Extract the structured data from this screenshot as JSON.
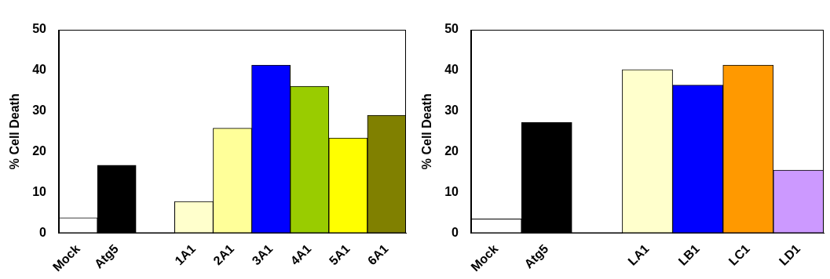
{
  "chart_data": [
    {
      "type": "bar",
      "y_label": "% Cell Death",
      "categories": [
        "Mock",
        "Atg5",
        null,
        "1A1",
        "2A1",
        "3A1",
        "4A1",
        "5A1",
        "6A1"
      ],
      "values": [
        3.8,
        16.7,
        null,
        7.8,
        25.8,
        41.3,
        36.1,
        23.4,
        29.0
      ],
      "colors": [
        "#ffffff",
        "#000000",
        null,
        "#ffffcc",
        "#ffff99",
        "#0000ff",
        "#99cc00",
        "#ffff00",
        "#808000"
      ],
      "ylim": [
        0,
        50
      ],
      "yticks": [
        0,
        10,
        20,
        30,
        40,
        50
      ],
      "grid": false
    },
    {
      "type": "bar",
      "y_label": "% Cell Death",
      "categories": [
        "Mock",
        "Atg5",
        null,
        "LA1",
        "LB1",
        "LC1",
        "LD1"
      ],
      "values": [
        3.5,
        27.2,
        null,
        40.2,
        36.4,
        41.3,
        15.5
      ],
      "colors": [
        "#ffffff",
        "#000000",
        null,
        "#ffffcc",
        "#0000ff",
        "#ff9900",
        "#cc99ff"
      ],
      "ylim": [
        0,
        50
      ],
      "yticks": [
        0,
        10,
        20,
        30,
        40,
        50
      ],
      "grid": false
    }
  ]
}
